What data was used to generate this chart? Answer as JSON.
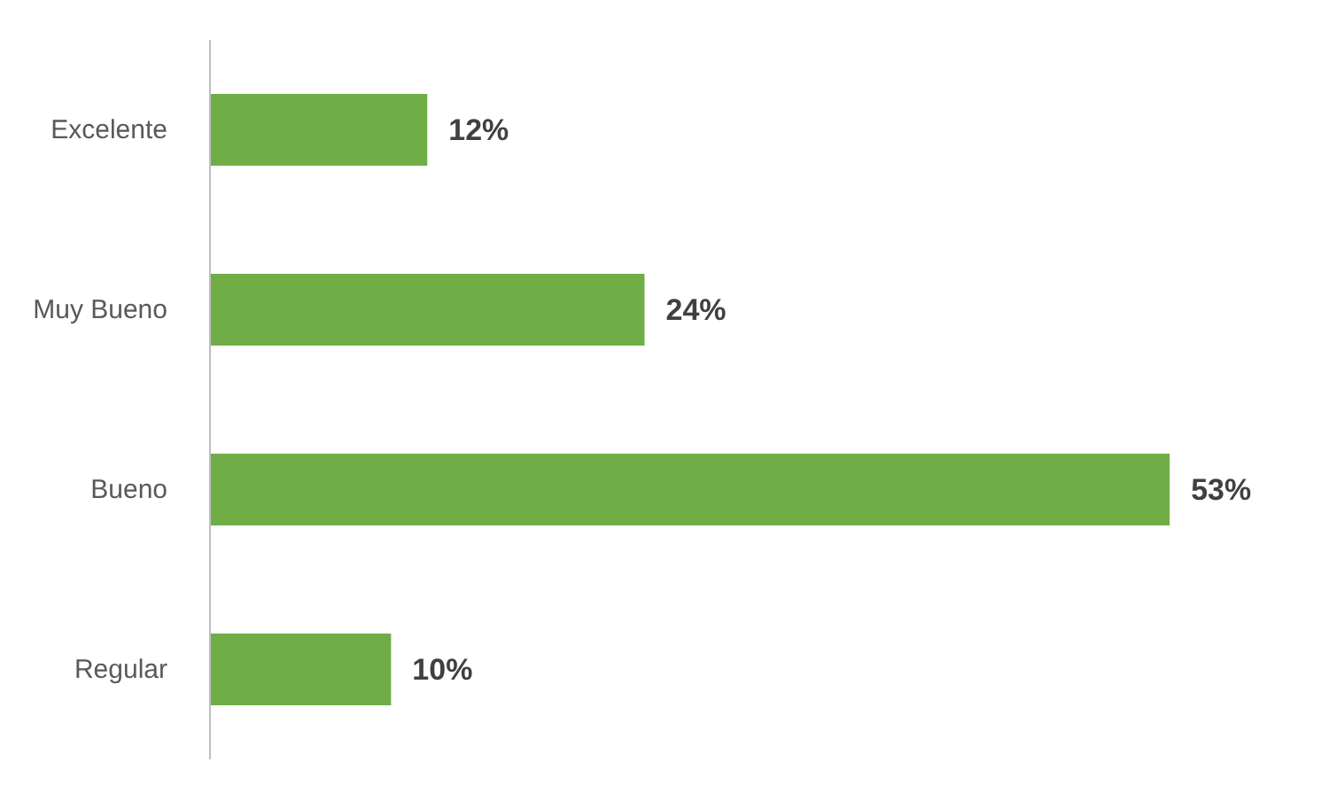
{
  "chart_data": {
    "type": "bar",
    "orientation": "horizontal",
    "categories": [
      "Excelente",
      "Muy Bueno",
      "Bueno",
      "Regular"
    ],
    "values": [
      12,
      24,
      53,
      10
    ],
    "value_labels": [
      "12%",
      "24%",
      "53%",
      "10%"
    ],
    "color": "#70ad47",
    "tick_labels": "y"
  }
}
